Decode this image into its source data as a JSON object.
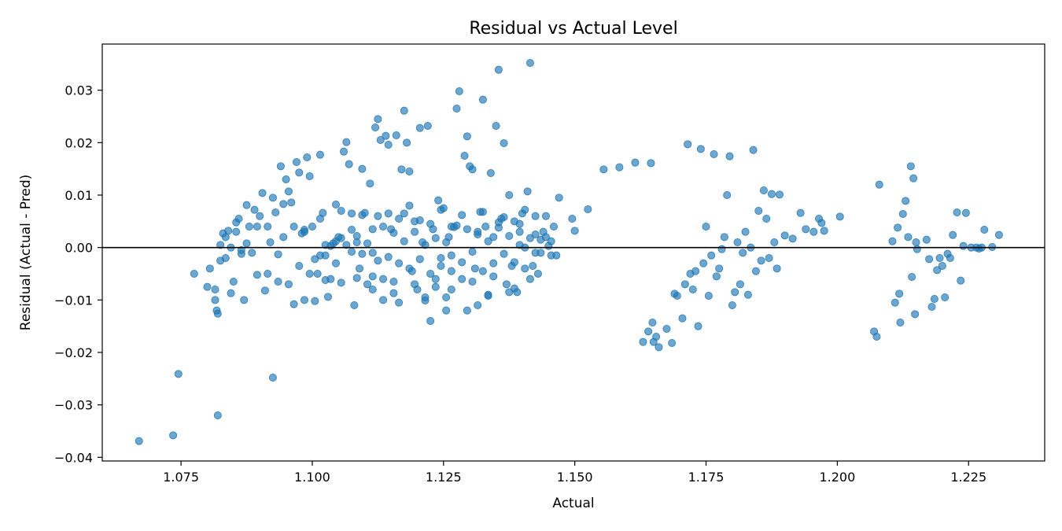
{
  "chart_data": {
    "type": "scatter",
    "title": "Residual vs Actual Level",
    "xlabel": "Actual",
    "ylabel": "Residual (Actual - Pred)",
    "xlim": [
      1.06,
      1.2395
    ],
    "ylim": [
      -0.0407,
      0.0388
    ],
    "xticks": [
      1.075,
      1.1,
      1.125,
      1.15,
      1.175,
      1.2,
      1.225
    ],
    "xtick_labels": [
      "1.075",
      "1.100",
      "1.125",
      "1.150",
      "1.175",
      "1.200",
      "1.225"
    ],
    "yticks": [
      -0.04,
      -0.03,
      -0.02,
      -0.01,
      0.0,
      0.01,
      0.02,
      0.03
    ],
    "ytick_labels": [
      "−0.04",
      "−0.03",
      "−0.02",
      "−0.01",
      "0.00",
      "0.01",
      "0.02",
      "0.03"
    ],
    "reference_line_y": 0,
    "grid": false,
    "legend": "none",
    "point_color": "#1f77b4",
    "point_alpha": 0.65,
    "points": [
      [
        1.067,
        -0.0369
      ],
      [
        1.0735,
        -0.0358
      ],
      [
        1.0745,
        -0.0241
      ],
      [
        1.082,
        -0.032
      ],
      [
        1.0925,
        -0.0248
      ],
      [
        1.0775,
        -0.005
      ],
      [
        1.08,
        -0.0075
      ],
      [
        1.0805,
        -0.004
      ],
      [
        1.0815,
        -0.01
      ],
      [
        1.0818,
        -0.012
      ],
      [
        1.082,
        -0.0126
      ],
      [
        1.0825,
        -0.0025
      ],
      [
        1.083,
        0.0027
      ],
      [
        1.0835,
        0.002
      ],
      [
        1.084,
        0.0032
      ],
      [
        1.0845,
        -0.0087
      ],
      [
        1.085,
        -0.0065
      ],
      [
        1.0855,
        0.003
      ],
      [
        1.086,
        0.0055
      ],
      [
        1.0865,
        -0.0005
      ],
      [
        1.087,
        -0.01
      ],
      [
        1.0875,
        0.0081
      ],
      [
        1.088,
        0.004
      ],
      [
        1.089,
        0.0072
      ],
      [
        1.0895,
        -0.0052
      ],
      [
        1.09,
        0.006
      ],
      [
        1.0905,
        0.0104
      ],
      [
        1.091,
        -0.0082
      ],
      [
        1.0915,
        -0.005
      ],
      [
        1.092,
        0.001
      ],
      [
        1.0925,
        0.0095
      ],
      [
        1.093,
        0.0067
      ],
      [
        1.0935,
        -0.0013
      ],
      [
        1.094,
        0.0155
      ],
      [
        1.0945,
        0.0083
      ],
      [
        1.095,
        0.013
      ],
      [
        1.0955,
        0.0107
      ],
      [
        1.096,
        0.0086
      ],
      [
        1.0965,
        -0.0108
      ],
      [
        1.097,
        0.0163
      ],
      [
        1.0975,
        0.0143
      ],
      [
        1.098,
        0.0027
      ],
      [
        1.0985,
        0.0034
      ],
      [
        1.099,
        0.0172
      ],
      [
        1.0995,
        0.0136
      ],
      [
        1.1,
        0.004
      ],
      [
        1.1005,
        -0.0102
      ],
      [
        1.101,
        -0.005
      ],
      [
        1.1015,
        0.0177
      ],
      [
        1.102,
        0.0066
      ],
      [
        1.1025,
        -0.0015
      ],
      [
        1.103,
        -0.0094
      ],
      [
        1.1035,
        -0.006
      ],
      [
        1.104,
        0.0008
      ],
      [
        1.1045,
        0.0082
      ],
      [
        1.105,
        0.002
      ],
      [
        1.1055,
        -0.0067
      ],
      [
        1.106,
        0.0183
      ],
      [
        1.1065,
        0.0201
      ],
      [
        1.107,
        0.0159
      ],
      [
        1.1075,
        0.0034
      ],
      [
        1.108,
        -0.011
      ],
      [
        1.1085,
        0.001
      ],
      [
        1.109,
        -0.004
      ],
      [
        1.1095,
        0.015
      ],
      [
        1.11,
        0.0066
      ],
      [
        1.1105,
        -0.007
      ],
      [
        1.111,
        0.0122
      ],
      [
        1.1115,
        -0.001
      ],
      [
        1.112,
        0.0229
      ],
      [
        1.1125,
        0.0245
      ],
      [
        1.113,
        0.0205
      ],
      [
        1.1135,
        -0.006
      ],
      [
        1.114,
        0.0213
      ],
      [
        1.1145,
        0.0196
      ],
      [
        1.115,
        0.0035
      ],
      [
        1.1155,
        -0.0087
      ],
      [
        1.116,
        0.0214
      ],
      [
        1.1165,
        -0.0105
      ],
      [
        1.117,
        0.0149
      ],
      [
        1.1175,
        0.0261
      ],
      [
        1.118,
        0.02
      ],
      [
        1.1185,
        0.0145
      ],
      [
        1.119,
        -0.0045
      ],
      [
        1.1195,
        0.005
      ],
      [
        1.12,
        -0.008
      ],
      [
        1.1205,
        0.0228
      ],
      [
        1.121,
        0.001
      ],
      [
        1.1215,
        -0.0101
      ],
      [
        1.122,
        0.0232
      ],
      [
        1.1225,
        -0.014
      ],
      [
        1.123,
        0.0035
      ],
      [
        1.1235,
        -0.006
      ],
      [
        1.124,
        0.009
      ],
      [
        1.1245,
        -0.002
      ],
      [
        1.125,
        0.0075
      ],
      [
        1.1255,
        -0.012
      ],
      [
        1.126,
        0.002
      ],
      [
        1.1265,
        -0.0045
      ],
      [
        1.127,
        0.0039
      ],
      [
        1.1275,
        0.0265
      ],
      [
        1.128,
        0.0298
      ],
      [
        1.1285,
        -0.006
      ],
      [
        1.129,
        0.0175
      ],
      [
        1.1295,
        0.0212
      ],
      [
        1.13,
        0.0155
      ],
      [
        1.1305,
        0.0149
      ],
      [
        1.131,
        -0.004
      ],
      [
        1.1315,
        -0.011
      ],
      [
        1.132,
        0.0068
      ],
      [
        1.1325,
        0.0282
      ],
      [
        1.133,
        0.004
      ],
      [
        1.1335,
        -0.009
      ],
      [
        1.134,
        0.0142
      ],
      [
        1.1345,
        0.002
      ],
      [
        1.135,
        0.0232
      ],
      [
        1.1355,
        0.0339
      ],
      [
        1.136,
        0.0055
      ],
      [
        1.1365,
        0.0199
      ],
      [
        1.137,
        -0.007
      ],
      [
        1.1375,
        0.01
      ],
      [
        1.138,
        -0.0035
      ],
      [
        1.1385,
        0.005
      ],
      [
        1.139,
        -0.0085
      ],
      [
        1.1395,
        0.003
      ],
      [
        1.14,
        0.0065
      ],
      [
        1.1405,
        0.0
      ],
      [
        1.141,
        0.0107
      ],
      [
        1.1415,
        0.0352
      ],
      [
        1.142,
        -0.0035
      ],
      [
        1.1425,
        0.006
      ],
      [
        1.143,
        -0.005
      ],
      [
        1.1435,
        0.0015
      ],
      [
        1.144,
        0.003
      ],
      [
        1.1445,
        0.002
      ],
      [
        1.145,
        0.0003
      ],
      [
        1.1455,
        -0.0015
      ],
      [
        1.146,
        0.004
      ],
      [
        1.147,
        0.0095
      ],
      [
        1.1495,
        0.0055
      ],
      [
        1.15,
        0.0032
      ],
      [
        1.1525,
        0.0073
      ],
      [
        1.1555,
        0.0149
      ],
      [
        1.1585,
        0.0153
      ],
      [
        1.1615,
        0.0162
      ],
      [
        1.1645,
        0.0161
      ],
      [
        1.163,
        -0.018
      ],
      [
        1.164,
        -0.016
      ],
      [
        1.1648,
        -0.0143
      ],
      [
        1.165,
        -0.018
      ],
      [
        1.1655,
        -0.017
      ],
      [
        1.166,
        -0.019
      ],
      [
        1.1675,
        -0.0155
      ],
      [
        1.1685,
        -0.0182
      ],
      [
        1.169,
        -0.0088
      ],
      [
        1.1695,
        -0.0092
      ],
      [
        1.1705,
        -0.0135
      ],
      [
        1.171,
        -0.007
      ],
      [
        1.1715,
        0.0197
      ],
      [
        1.172,
        -0.005
      ],
      [
        1.1725,
        -0.008
      ],
      [
        1.173,
        -0.0045
      ],
      [
        1.1735,
        -0.015
      ],
      [
        1.174,
        0.0188
      ],
      [
        1.1745,
        -0.003
      ],
      [
        1.175,
        0.004
      ],
      [
        1.1755,
        -0.0092
      ],
      [
        1.176,
        -0.0015
      ],
      [
        1.1765,
        0.0178
      ],
      [
        1.177,
        -0.0055
      ],
      [
        1.1775,
        -0.004
      ],
      [
        1.178,
        -0.0003
      ],
      [
        1.1785,
        0.002
      ],
      [
        1.179,
        0.01
      ],
      [
        1.1795,
        0.0174
      ],
      [
        1.18,
        -0.011
      ],
      [
        1.1805,
        -0.0085
      ],
      [
        1.181,
        0.001
      ],
      [
        1.1815,
        -0.007
      ],
      [
        1.182,
        -0.001
      ],
      [
        1.1825,
        0.003
      ],
      [
        1.183,
        -0.009
      ],
      [
        1.1835,
        0.0
      ],
      [
        1.184,
        0.0186
      ],
      [
        1.1845,
        -0.0045
      ],
      [
        1.185,
        0.007
      ],
      [
        1.1855,
        -0.0025
      ],
      [
        1.186,
        0.0109
      ],
      [
        1.1865,
        0.0055
      ],
      [
        1.187,
        -0.002
      ],
      [
        1.1875,
        0.0102
      ],
      [
        1.188,
        0.001
      ],
      [
        1.1885,
        -0.004
      ],
      [
        1.189,
        0.0101
      ],
      [
        1.19,
        0.0023
      ],
      [
        1.1915,
        0.0017
      ],
      [
        1.193,
        0.0066
      ],
      [
        1.194,
        0.0035
      ],
      [
        1.1955,
        0.003
      ],
      [
        1.1965,
        0.0055
      ],
      [
        1.197,
        0.0047
      ],
      [
        1.1975,
        0.0032
      ],
      [
        1.2005,
        0.0059
      ],
      [
        1.207,
        -0.016
      ],
      [
        1.2075,
        -0.017
      ],
      [
        1.208,
        0.012
      ],
      [
        1.2105,
        0.0012
      ],
      [
        1.211,
        -0.0105
      ],
      [
        1.2115,
        0.0038
      ],
      [
        1.2118,
        -0.0088
      ],
      [
        1.212,
        -0.0143
      ],
      [
        1.2125,
        0.0064
      ],
      [
        1.213,
        0.0089
      ],
      [
        1.2135,
        0.002
      ],
      [
        1.214,
        0.0155
      ],
      [
        1.2142,
        -0.0056
      ],
      [
        1.2145,
        0.0132
      ],
      [
        1.2148,
        -0.0127
      ],
      [
        1.215,
        0.001
      ],
      [
        1.2152,
        -0.0003
      ],
      [
        1.217,
        0.0015
      ],
      [
        1.2175,
        -0.0022
      ],
      [
        1.218,
        -0.0113
      ],
      [
        1.2185,
        -0.0098
      ],
      [
        1.219,
        -0.0043
      ],
      [
        1.2195,
        -0.002
      ],
      [
        1.22,
        -0.0035
      ],
      [
        1.2205,
        -0.0095
      ],
      [
        1.221,
        -0.0012
      ],
      [
        1.2215,
        -0.002
      ],
      [
        1.222,
        0.0024
      ],
      [
        1.2228,
        0.0067
      ],
      [
        1.2235,
        -0.0063
      ],
      [
        1.224,
        0.0003
      ],
      [
        1.2245,
        0.0066
      ],
      [
        1.2255,
        0.0
      ],
      [
        1.2265,
        0.0
      ],
      [
        1.227,
        -0.0002
      ],
      [
        1.2275,
        0.0
      ],
      [
        1.228,
        0.0034
      ],
      [
        1.2295,
        0.0001
      ],
      [
        1.2308,
        0.0024
      ],
      [
        1.1035,
        0.0003
      ],
      [
        1.1045,
        0.0012
      ],
      [
        1.1055,
        0.0018
      ],
      [
        1.1065,
        0.0005
      ],
      [
        1.1075,
        -0.0008
      ],
      [
        1.1085,
        0.0022
      ],
      [
        1.1095,
        -0.0012
      ],
      [
        1.1105,
        0.0008
      ],
      [
        1.1115,
        0.0035
      ],
      [
        1.1125,
        -0.0025
      ],
      [
        1.1135,
        0.004
      ],
      [
        1.1145,
        -0.0018
      ],
      [
        1.1155,
        0.0028
      ],
      [
        1.1165,
        -0.003
      ],
      [
        1.1175,
        0.0012
      ],
      [
        1.1185,
        -0.004
      ],
      [
        1.1195,
        0.003
      ],
      [
        1.1205,
        -0.0022
      ],
      [
        1.1215,
        0.0005
      ],
      [
        1.1225,
        -0.005
      ],
      [
        1.1235,
        0.0018
      ],
      [
        1.1245,
        -0.0035
      ],
      [
        1.1255,
        0.001
      ],
      [
        1.1265,
        -0.0015
      ],
      [
        1.1275,
        0.0042
      ],
      [
        1.1285,
        -0.0028
      ],
      [
        1.1295,
        0.0035
      ],
      [
        1.1305,
        -0.0008
      ],
      [
        1.1315,
        0.0025
      ],
      [
        1.1325,
        -0.0045
      ],
      [
        1.1335,
        0.0012
      ],
      [
        1.1345,
        -0.003
      ],
      [
        1.1355,
        0.0038
      ],
      [
        1.1365,
        -0.0012
      ],
      [
        1.1375,
        0.0022
      ],
      [
        1.1385,
        -0.0028
      ],
      [
        1.1395,
        0.0005
      ],
      [
        1.1405,
        -0.004
      ],
      [
        1.1415,
        0.0018
      ],
      [
        1.1425,
        -0.001
      ],
      [
        1.1005,
        -0.0022
      ],
      [
        1.1015,
        0.0055
      ],
      [
        1.1025,
        -0.0062
      ],
      [
        1.1045,
        -0.003
      ],
      [
        1.1055,
        0.007
      ],
      [
        1.1075,
        0.0065
      ],
      [
        1.1085,
        -0.0058
      ],
      [
        1.1095,
        0.0062
      ],
      [
        1.1115,
        -0.0055
      ],
      [
        1.1125,
        0.006
      ],
      [
        1.1145,
        0.0065
      ],
      [
        1.1155,
        -0.0065
      ],
      [
        1.1175,
        0.0065
      ],
      [
        1.1195,
        -0.007
      ],
      [
        1.1205,
        0.0052
      ],
      [
        1.1235,
        -0.0075
      ],
      [
        1.1245,
        0.0072
      ],
      [
        1.1265,
        -0.008
      ],
      [
        1.1285,
        0.0062
      ],
      [
        1.1305,
        -0.0065
      ],
      [
        1.1325,
        0.0068
      ],
      [
        1.1345,
        -0.0055
      ],
      [
        1.1365,
        0.0058
      ],
      [
        1.1385,
        -0.0078
      ],
      [
        1.1405,
        0.0072
      ],
      [
        1.0955,
        -0.007
      ],
      [
        1.0975,
        -0.0035
      ],
      [
        1.0995,
        -0.005
      ],
      [
        1.0985,
        -0.01
      ],
      [
        1.0935,
        -0.0065
      ],
      [
        1.0915,
        0.004
      ],
      [
        1.0885,
        -0.001
      ],
      [
        1.0865,
        -0.0012
      ],
      [
        1.0845,
        0.0
      ],
      [
        1.0835,
        -0.002
      ],
      [
        1.0825,
        0.0005
      ],
      [
        1.0815,
        -0.008
      ],
      [
        1.0855,
        0.0048
      ],
      [
        1.0875,
        0.0008
      ],
      [
        1.0895,
        0.004
      ],
      [
        1.0945,
        0.002
      ],
      [
        1.0965,
        0.004
      ],
      [
        1.0985,
        0.003
      ],
      [
        1.1015,
        -0.0015
      ],
      [
        1.1025,
        0.0005
      ],
      [
        1.1115,
        -0.008
      ],
      [
        1.1135,
        -0.01
      ],
      [
        1.1165,
        0.0055
      ],
      [
        1.1185,
        0.008
      ],
      [
        1.1215,
        -0.0095
      ],
      [
        1.1225,
        0.0045
      ],
      [
        1.1255,
        -0.0095
      ],
      [
        1.1265,
        0.004
      ],
      [
        1.1295,
        -0.012
      ],
      [
        1.1315,
        0.003
      ],
      [
        1.1335,
        -0.0092
      ],
      [
        1.1355,
        0.0048
      ],
      [
        1.1375,
        -0.0085
      ],
      [
        1.1395,
        0.0045
      ],
      [
        1.1415,
        -0.006
      ],
      [
        1.1445,
        0.006
      ],
      [
        1.1455,
        0.0012
      ],
      [
        1.1465,
        -0.0015
      ],
      [
        1.1425,
        0.0025
      ],
      [
        1.1435,
        -0.001
      ]
    ]
  }
}
